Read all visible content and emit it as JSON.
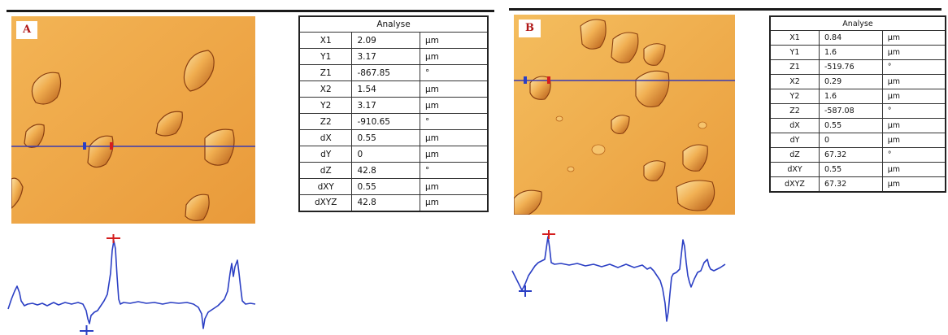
{
  "panels": [
    {
      "label": "A",
      "table": {
        "title": "Analyse",
        "rows": [
          [
            "X1",
            "2.09",
            "µm"
          ],
          [
            "Y1",
            "3.17",
            "µm"
          ],
          [
            "Z1",
            "-867.85",
            "°"
          ],
          [
            "X2",
            "1.54",
            "µm"
          ],
          [
            "Y2",
            "3.17",
            "µm"
          ],
          [
            "Z2",
            "-910.65",
            "°"
          ],
          [
            "dX",
            "0.55",
            "µm"
          ],
          [
            "dY",
            "0",
            "µm"
          ],
          [
            "dZ",
            "42.8",
            "°"
          ],
          [
            "dXY",
            "0.55",
            "µm"
          ],
          [
            "dXYZ",
            "42.8",
            "µm"
          ]
        ]
      }
    },
    {
      "label": "B",
      "table": {
        "title": "Analyse",
        "rows": [
          [
            "X1",
            "0.84",
            "µm"
          ],
          [
            "Y1",
            "1.6",
            "µm"
          ],
          [
            "Z1",
            "-519.76",
            "°"
          ],
          [
            "X2",
            "0.29",
            "µm"
          ],
          [
            "Y2",
            "1.6",
            "µm"
          ],
          [
            "Z2",
            "-587.08",
            "°"
          ],
          [
            "dX",
            "0.55",
            "µm"
          ],
          [
            "dY",
            "0",
            "µm"
          ],
          [
            "dZ",
            "67.32",
            "°"
          ],
          [
            "dXY",
            "0.55",
            "µm"
          ],
          [
            "dXYZ",
            "67.32",
            "µm"
          ]
        ]
      }
    }
  ],
  "colors": {
    "afm_light": "#f2b252",
    "afm_dark": "#c96f1d",
    "scan_line": "#3a3ab0",
    "profile": "#2b3fc4",
    "marker_red": "#d41e1e",
    "marker_blue": "#2b3fc4"
  }
}
